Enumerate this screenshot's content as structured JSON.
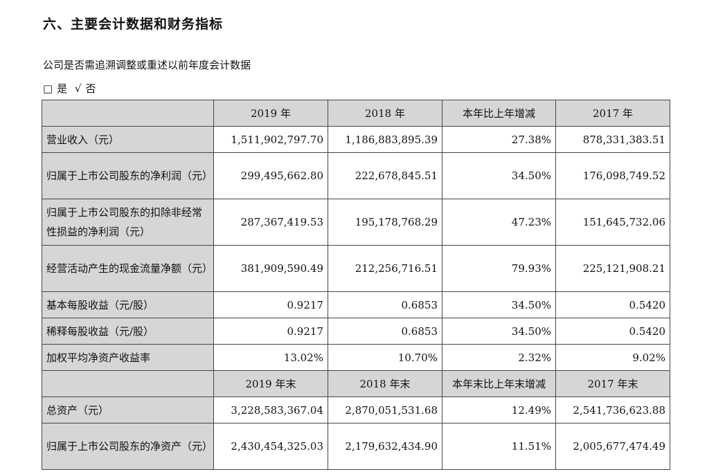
{
  "title": "六、主要会计数据和财务指标",
  "question": "公司是否需追溯调整或重述以前年度会计数据",
  "answer": {
    "box": "□",
    "yes": "是",
    "check": "√",
    "no": "否"
  },
  "table": {
    "header1": [
      "2019 年",
      "2018 年",
      "本年比上年增减",
      "2017 年"
    ],
    "rows1": [
      {
        "label": "营业收入（元）",
        "values": [
          "1,511,902,797.70",
          "1,186,883,895.39",
          "27.38%",
          "878,331,383.51"
        ]
      },
      {
        "label": "归属于上市公司股东的净利润（元）",
        "values": [
          "299,495,662.80",
          "222,678,845.51",
          "34.50%",
          "176,098,749.52"
        ]
      },
      {
        "label": "归属于上市公司股东的扣除非经常性损益的净利润（元）",
        "values": [
          "287,367,419.53",
          "195,178,768.29",
          "47.23%",
          "151,645,732.06"
        ]
      },
      {
        "label": "经营活动产生的现金流量净额（元）",
        "values": [
          "381,909,590.49",
          "212,256,716.51",
          "79.93%",
          "225,121,908.21"
        ]
      },
      {
        "label": "基本每股收益（元/股）",
        "values": [
          "0.9217",
          "0.6853",
          "34.50%",
          "0.5420"
        ]
      },
      {
        "label": "稀释每股收益（元/股）",
        "values": [
          "0.9217",
          "0.6853",
          "34.50%",
          "0.5420"
        ]
      },
      {
        "label": "加权平均净资产收益率",
        "values": [
          "13.02%",
          "10.70%",
          "2.32%",
          "9.02%"
        ]
      }
    ],
    "header2": [
      "2019 年末",
      "2018 年末",
      "本年末比上年末增减",
      "2017 年末"
    ],
    "rows2": [
      {
        "label": "总资产（元）",
        "values": [
          "3,228,583,367.04",
          "2,870,051,531.68",
          "12.49%",
          "2,541,736,623.88"
        ]
      },
      {
        "label": "归属于上市公司股东的净资产（元）",
        "values": [
          "2,430,454,325.03",
          "2,179,632,434.90",
          "11.51%",
          "2,005,677,474.49"
        ]
      }
    ]
  }
}
